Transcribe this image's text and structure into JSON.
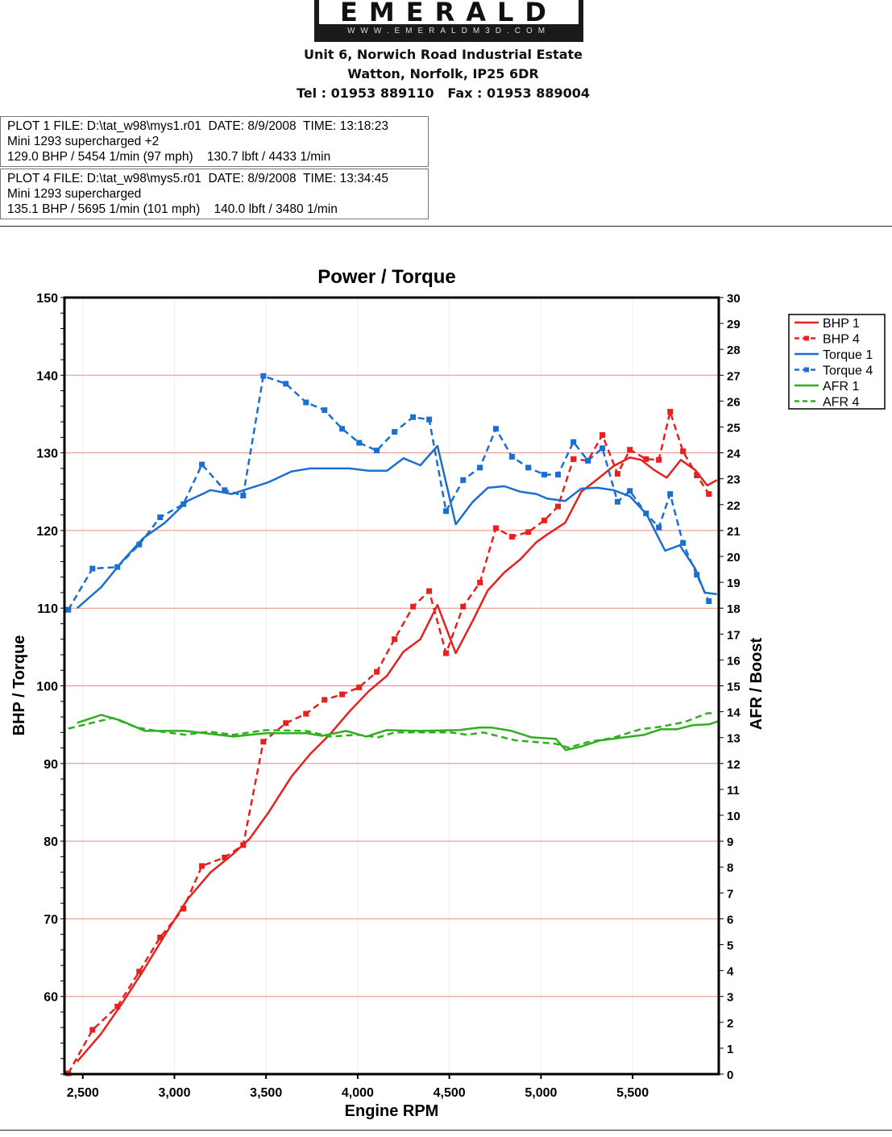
{
  "header": {
    "logo_text": "EMERALD",
    "logo_url": "WWW.EMERALDM3D.COM",
    "address_line1": "Unit 6, Norwich Road Industrial Estate",
    "address_line2": "Watton, Norfolk, IP25 6DR",
    "address_line3": "Tel : 01953 889110   Fax : 01953 889004"
  },
  "plots": [
    {
      "line1": "PLOT 1 FILE: D:\\tat_w98\\mys1.r01  DATE: 8/9/2008  TIME: 13:18:23",
      "line2": "Mini 1293 supercharged +2",
      "line3": "129.0 BHP / 5454 1/min (97 mph)    130.7 lbft / 4433 1/min"
    },
    {
      "line1": "PLOT 4 FILE: D:\\tat_w98\\mys5.r01  DATE: 8/9/2008  TIME: 13:34:45",
      "line2": "Mini 1293 supercharged",
      "line3": "135.1 BHP / 5695 1/min (101 mph)    140.0 lbft / 3480 1/min"
    }
  ],
  "chart_data": {
    "type": "line",
    "title": "Power / Torque",
    "xlabel": "Engine RPM",
    "ylabel": "BHP / Torque",
    "y2label": "AFR / Boost",
    "xlim": [
      2400,
      5970
    ],
    "ylim": [
      50,
      150
    ],
    "y2lim": [
      0,
      30
    ],
    "xticks": [
      2500,
      3000,
      3500,
      4000,
      4500,
      5000,
      5500
    ],
    "xtick_labels": [
      "2,500",
      "3,000",
      "3,500",
      "4,000",
      "4,500",
      "5,000",
      "5,500"
    ],
    "yticks": [
      "60",
      "70",
      "80",
      "90",
      "100",
      "110",
      "120",
      "130",
      "140",
      "150"
    ],
    "y2ticks": [
      "0",
      "1",
      "2",
      "3",
      "4",
      "5",
      "6",
      "7",
      "8",
      "9",
      "10",
      "11",
      "12",
      "13",
      "14",
      "15",
      "16",
      "17",
      "18",
      "19",
      "20",
      "21",
      "22",
      "23",
      "24",
      "25",
      "26",
      "27",
      "28",
      "29",
      "30"
    ],
    "grid": "horizontal",
    "legend_position": "right",
    "series": [
      {
        "name": "BHP 1",
        "color": "#e8201e",
        "dashed": false,
        "markers": false,
        "axis": "left",
        "x": [
          2469,
          2600,
          2714,
          2829,
          2948,
          3071,
          3198,
          3313,
          3410,
          3511,
          3638,
          3740,
          3850,
          3955,
          4060,
          4160,
          4250,
          4342,
          4435,
          4535,
          4628,
          4710,
          4800,
          4888,
          4975,
          5035,
          5132,
          5220,
          5308,
          5396,
          5485,
          5546,
          5617,
          5686,
          5763,
          5841,
          5907,
          5960
        ],
        "y": [
          51.6,
          55.2,
          59.1,
          63.3,
          67.9,
          72.5,
          76.0,
          78.2,
          80.3,
          83.6,
          88.3,
          91.2,
          93.8,
          96.7,
          99.3,
          101.3,
          104.4,
          106.0,
          110.4,
          104.2,
          108.4,
          112.3,
          114.6,
          116.3,
          118.5,
          119.5,
          121.0,
          125.0,
          126.6,
          128.3,
          129.4,
          129.1,
          127.8,
          126.8,
          129.1,
          127.8,
          125.8,
          126.5
        ]
      },
      {
        "name": "BHP 4",
        "color": "#e8201e",
        "dashed": true,
        "markers": true,
        "axis": "left",
        "x": [
          2421,
          2553,
          2689,
          2808,
          2922,
          3049,
          3150,
          3274,
          3375,
          3485,
          3608,
          3718,
          3819,
          3915,
          4008,
          4104,
          4201,
          4302,
          4390,
          4482,
          4575,
          4667,
          4754,
          4842,
          4931,
          5018,
          5093,
          5177,
          5256,
          5335,
          5418,
          5485,
          5573,
          5643,
          5705,
          5775,
          5850,
          5916
        ],
        "y": [
          50.1,
          55.7,
          58.7,
          63.2,
          67.6,
          71.3,
          76.8,
          77.9,
          79.5,
          92.8,
          95.2,
          96.4,
          98.2,
          98.9,
          99.8,
          101.8,
          106.0,
          110.2,
          112.2,
          104.2,
          110.2,
          113.3,
          120.3,
          119.2,
          119.8,
          121.3,
          123.1,
          129.2,
          129.0,
          132.3,
          127.3,
          130.4,
          129.2,
          129.1,
          135.3,
          130.2,
          127.1,
          124.7
        ]
      },
      {
        "name": "Torque 1",
        "color": "#1a6fd0",
        "dashed": false,
        "markers": false,
        "axis": "left",
        "x": [
          2469,
          2600,
          2714,
          2829,
          2948,
          3071,
          3198,
          3313,
          3511,
          3638,
          3740,
          3955,
          4060,
          4160,
          4250,
          4342,
          4435,
          4535,
          4628,
          4710,
          4800,
          4888,
          4975,
          5035,
          5132,
          5220,
          5308,
          5396,
          5485,
          5576,
          5677,
          5757,
          5841,
          5893,
          5960
        ],
        "y": [
          110.0,
          112.7,
          116.0,
          119.0,
          121.0,
          123.8,
          125.2,
          124.7,
          126.2,
          127.6,
          128.0,
          128.0,
          127.7,
          127.7,
          129.3,
          128.4,
          130.9,
          120.8,
          123.7,
          125.5,
          125.7,
          125.0,
          124.7,
          124.1,
          123.8,
          125.4,
          125.5,
          125.2,
          124.4,
          122.1,
          117.4,
          118.1,
          115.1,
          112.0,
          111.8
        ]
      },
      {
        "name": "Torque 4",
        "color": "#1a6fd0",
        "dashed": true,
        "markers": true,
        "axis": "left",
        "x": [
          2421,
          2553,
          2689,
          2808,
          2922,
          3049,
          3150,
          3274,
          3375,
          3485,
          3608,
          3718,
          3819,
          3915,
          4008,
          4104,
          4201,
          4302,
          4390,
          4482,
          4575,
          4667,
          4754,
          4842,
          4931,
          5018,
          5093,
          5177,
          5256,
          5335,
          5418,
          5485,
          5573,
          5643,
          5705,
          5775,
          5850,
          5916
        ],
        "y": [
          109.8,
          115.1,
          115.3,
          118.2,
          121.7,
          123.4,
          128.5,
          125.2,
          124.5,
          139.9,
          138.9,
          136.5,
          135.5,
          133.1,
          131.3,
          130.3,
          132.7,
          134.6,
          134.3,
          122.5,
          126.5,
          128.1,
          133.1,
          129.5,
          128.1,
          127.2,
          127.2,
          131.4,
          129.0,
          130.6,
          123.7,
          125.1,
          122.2,
          120.4,
          124.7,
          118.4,
          114.3,
          110.9
        ]
      },
      {
        "name": "AFR 1",
        "color": "#2fae1e",
        "dashed": false,
        "markers": false,
        "axis": "right",
        "x": [
          2469,
          2601,
          2707,
          2838,
          3058,
          3322,
          3498,
          3718,
          3806,
          3937,
          4047,
          4157,
          4333,
          4553,
          4663,
          4729,
          4839,
          4949,
          5081,
          5134,
          5212,
          5322,
          5564,
          5652,
          5740,
          5828,
          5916,
          5968
        ],
        "y": [
          13.57,
          13.88,
          13.66,
          13.26,
          13.26,
          13.04,
          13.17,
          13.17,
          13.07,
          13.26,
          13.04,
          13.29,
          13.26,
          13.29,
          13.39,
          13.39,
          13.26,
          13.01,
          12.95,
          12.52,
          12.64,
          12.89,
          13.11,
          13.32,
          13.32,
          13.48,
          13.51,
          13.63
        ]
      },
      {
        "name": "AFR 4",
        "color": "#2fae1e",
        "dashed": true,
        "markers": false,
        "axis": "right",
        "x": [
          2421,
          2663,
          2795,
          2926,
          3058,
          3190,
          3322,
          3498,
          3718,
          3850,
          4003,
          4113,
          4201,
          4333,
          4509,
          4597,
          4685,
          4861,
          4971,
          5081,
          5151,
          5256,
          5388,
          5542,
          5652,
          5784,
          5907,
          5938
        ],
        "y": [
          13.35,
          13.76,
          13.39,
          13.23,
          13.11,
          13.23,
          13.11,
          13.29,
          13.26,
          13.04,
          13.11,
          13.01,
          13.2,
          13.2,
          13.2,
          13.11,
          13.2,
          12.89,
          12.83,
          12.76,
          12.61,
          12.83,
          12.98,
          13.32,
          13.42,
          13.6,
          13.94,
          13.94
        ]
      }
    ]
  }
}
